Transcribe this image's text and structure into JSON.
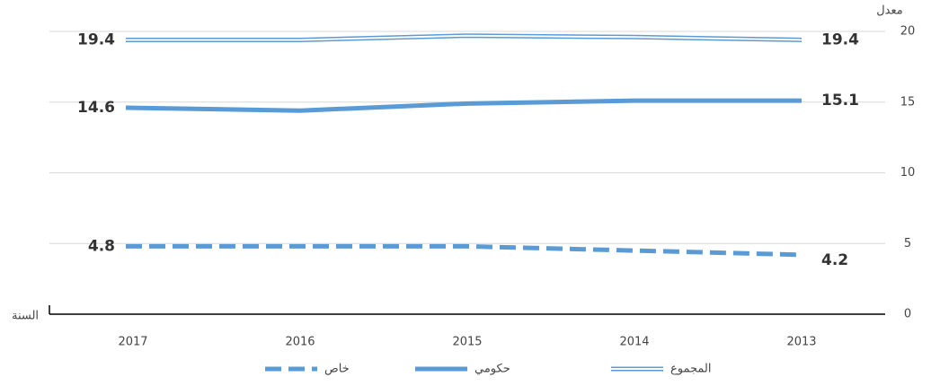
{
  "chart_data": {
    "type": "line",
    "y_label": "معدل",
    "x_label": "السنة",
    "categories": [
      "2017",
      "2016",
      "2015",
      "2014",
      "2013"
    ],
    "series": [
      {
        "name": "المجموع",
        "color": "#5b9bd5",
        "style": "double",
        "values": [
          19.4,
          19.4,
          19.7,
          19.6,
          19.4
        ],
        "value_labels": [
          "19.4",
          null,
          null,
          null,
          "19.4"
        ]
      },
      {
        "name": "حكومي",
        "color": "#5b9bd5",
        "style": "solid",
        "values": [
          14.6,
          14.4,
          14.9,
          15.1,
          15.1
        ],
        "value_labels": [
          "14.6",
          null,
          null,
          null,
          "15.1"
        ]
      },
      {
        "name": "خاص",
        "color": "#5b9bd5",
        "style": "dashed",
        "values": [
          4.8,
          4.8,
          4.8,
          4.5,
          4.2
        ],
        "value_labels": [
          "4.8",
          null,
          null,
          null,
          "4.2"
        ]
      }
    ],
    "ylim": [
      0,
      20
    ],
    "yticks": [
      0,
      5,
      10,
      15,
      20
    ],
    "grid": true,
    "legend": "bottom"
  }
}
